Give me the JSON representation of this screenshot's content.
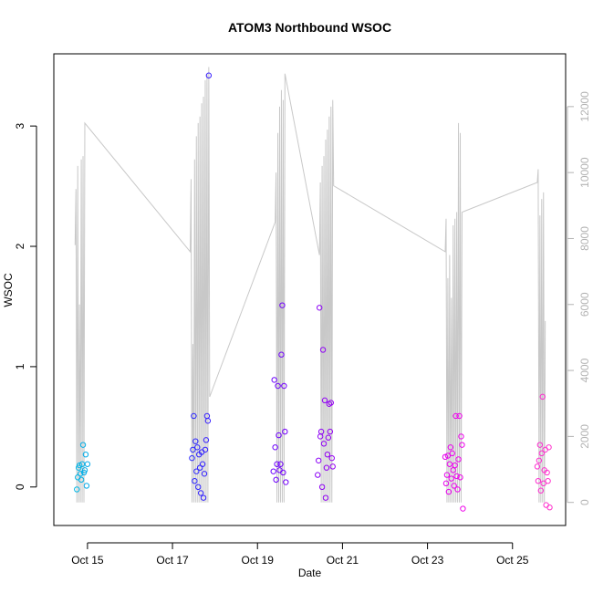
{
  "chart_data": {
    "type": "scatter",
    "title": "ATOM3 Northbound WSOC",
    "xlabel": "Date",
    "ylabel": "WSOC",
    "xlim": [
      "2016-10-14 05:00",
      "2016-10-26 06:00"
    ],
    "ylim": [
      -0.32,
      3.6
    ],
    "y2lim": [
      -700,
      13600
    ],
    "xticks": [
      {
        "date": "2016-10-15",
        "label": "Oct 15"
      },
      {
        "date": "2016-10-17",
        "label": "Oct 17"
      },
      {
        "date": "2016-10-19",
        "label": "Oct 19"
      },
      {
        "date": "2016-10-21",
        "label": "Oct 21"
      },
      {
        "date": "2016-10-23",
        "label": "Oct 23"
      },
      {
        "date": "2016-10-25",
        "label": "Oct 25"
      }
    ],
    "yticks": [
      0,
      1,
      2,
      3
    ],
    "y2ticks": [
      0,
      2000,
      4000,
      6000,
      8000,
      10000,
      12000
    ],
    "grid": false,
    "legend": "none",
    "point_color_scale": [
      "#00b8e6",
      "#1a33ff",
      "#6600ff",
      "#aa00ee",
      "#ee00ee",
      "#ff33cc"
    ],
    "line_color": "#c8c8c8",
    "series": [
      {
        "axis": "left",
        "values": [
          {
            "x": "2016-10-14 18:00",
            "y": -0.02
          },
          {
            "x": "2016-10-14 18:30",
            "y": 0.08
          },
          {
            "x": "2016-10-14 19:00",
            "y": 0.16
          },
          {
            "x": "2016-10-14 19:30",
            "y": 0.18
          },
          {
            "x": "2016-10-14 20:00",
            "y": 0.11
          },
          {
            "x": "2016-10-14 20:30",
            "y": 0.06
          },
          {
            "x": "2016-10-14 21:00",
            "y": 0.19
          },
          {
            "x": "2016-10-14 21:30",
            "y": 0.35
          },
          {
            "x": "2016-10-14 22:00",
            "y": 0.12
          },
          {
            "x": "2016-10-14 22:30",
            "y": 0.14
          },
          {
            "x": "2016-10-14 23:00",
            "y": 0.27
          },
          {
            "x": "2016-10-14 23:30",
            "y": 0.01
          },
          {
            "x": "2016-10-15 00:00",
            "y": 0.19
          },
          {
            "x": "2016-10-17 11:00",
            "y": 0.24
          },
          {
            "x": "2016-10-17 11:30",
            "y": 0.31
          },
          {
            "x": "2016-10-17 12:00",
            "y": 0.59
          },
          {
            "x": "2016-10-17 12:30",
            "y": 0.05
          },
          {
            "x": "2016-10-17 13:00",
            "y": 0.38
          },
          {
            "x": "2016-10-17 13:30",
            "y": 0.13
          },
          {
            "x": "2016-10-17 14:00",
            "y": 0.33
          },
          {
            "x": "2016-10-17 14:30",
            "y": 0.0
          },
          {
            "x": "2016-10-17 15:00",
            "y": 0.27
          },
          {
            "x": "2016-10-17 15:30",
            "y": 0.16
          },
          {
            "x": "2016-10-17 16:00",
            "y": -0.05
          },
          {
            "x": "2016-10-17 16:30",
            "y": 0.29
          },
          {
            "x": "2016-10-17 17:00",
            "y": 0.19
          },
          {
            "x": "2016-10-17 17:30",
            "y": -0.09
          },
          {
            "x": "2016-10-17 18:00",
            "y": 0.11
          },
          {
            "x": "2016-10-17 18:30",
            "y": 0.31
          },
          {
            "x": "2016-10-17 19:00",
            "y": 0.39
          },
          {
            "x": "2016-10-17 19:30",
            "y": 0.59
          },
          {
            "x": "2016-10-17 20:00",
            "y": 0.55
          },
          {
            "x": "2016-10-17 20:30",
            "y": 3.42
          },
          {
            "x": "2016-10-19 09:00",
            "y": 0.13
          },
          {
            "x": "2016-10-19 09:30",
            "y": 0.89
          },
          {
            "x": "2016-10-19 10:00",
            "y": 0.33
          },
          {
            "x": "2016-10-19 10:30",
            "y": 0.06
          },
          {
            "x": "2016-10-19 11:00",
            "y": 0.19
          },
          {
            "x": "2016-10-19 11:30",
            "y": 0.84
          },
          {
            "x": "2016-10-19 12:00",
            "y": 0.43
          },
          {
            "x": "2016-10-19 12:30",
            "y": 0.14
          },
          {
            "x": "2016-10-19 13:00",
            "y": 0.19
          },
          {
            "x": "2016-10-19 13:30",
            "y": 1.1
          },
          {
            "x": "2016-10-19 14:00",
            "y": 1.51
          },
          {
            "x": "2016-10-19 14:30",
            "y": 0.12
          },
          {
            "x": "2016-10-19 15:00",
            "y": 0.84
          },
          {
            "x": "2016-10-19 15:30",
            "y": 0.46
          },
          {
            "x": "2016-10-19 16:00",
            "y": 0.04
          },
          {
            "x": "2016-10-20 10:00",
            "y": 0.1
          },
          {
            "x": "2016-10-20 10:30",
            "y": 0.22
          },
          {
            "x": "2016-10-20 11:00",
            "y": 1.49
          },
          {
            "x": "2016-10-20 11:30",
            "y": 0.42
          },
          {
            "x": "2016-10-20 12:00",
            "y": 0.46
          },
          {
            "x": "2016-10-20 12:30",
            "y": 0.0
          },
          {
            "x": "2016-10-20 13:00",
            "y": 1.14
          },
          {
            "x": "2016-10-20 13:30",
            "y": 0.36
          },
          {
            "x": "2016-10-20 14:00",
            "y": 0.72
          },
          {
            "x": "2016-10-20 14:30",
            "y": -0.09
          },
          {
            "x": "2016-10-20 15:00",
            "y": 0.16
          },
          {
            "x": "2016-10-20 15:30",
            "y": 0.27
          },
          {
            "x": "2016-10-20 16:00",
            "y": 0.41
          },
          {
            "x": "2016-10-20 16:30",
            "y": 0.69
          },
          {
            "x": "2016-10-20 17:00",
            "y": 0.46
          },
          {
            "x": "2016-10-20 17:30",
            "y": 0.7
          },
          {
            "x": "2016-10-20 18:00",
            "y": 0.24
          },
          {
            "x": "2016-10-20 18:30",
            "y": 0.17
          },
          {
            "x": "2016-10-23 10:00",
            "y": 0.25
          },
          {
            "x": "2016-10-23 10:30",
            "y": 0.03
          },
          {
            "x": "2016-10-23 11:00",
            "y": 0.1
          },
          {
            "x": "2016-10-23 11:30",
            "y": 0.26
          },
          {
            "x": "2016-10-23 12:00",
            "y": -0.04
          },
          {
            "x": "2016-10-23 12:30",
            "y": 0.19
          },
          {
            "x": "2016-10-23 13:00",
            "y": 0.33
          },
          {
            "x": "2016-10-23 13:30",
            "y": 0.07
          },
          {
            "x": "2016-10-23 14:00",
            "y": 0.28
          },
          {
            "x": "2016-10-23 14:30",
            "y": 0.14
          },
          {
            "x": "2016-10-23 15:00",
            "y": 0.01
          },
          {
            "x": "2016-10-23 15:30",
            "y": 0.18
          },
          {
            "x": "2016-10-23 16:00",
            "y": 0.59
          },
          {
            "x": "2016-10-23 16:30",
            "y": 0.09
          },
          {
            "x": "2016-10-23 17:00",
            "y": -0.02
          },
          {
            "x": "2016-10-23 17:30",
            "y": 0.23
          },
          {
            "x": "2016-10-23 18:00",
            "y": 0.59
          },
          {
            "x": "2016-10-23 18:30",
            "y": 0.08
          },
          {
            "x": "2016-10-23 19:00",
            "y": 0.42
          },
          {
            "x": "2016-10-23 19:30",
            "y": 0.35
          },
          {
            "x": "2016-10-23 20:00",
            "y": -0.18
          },
          {
            "x": "2016-10-25 14:00",
            "y": 0.17
          },
          {
            "x": "2016-10-25 14:30",
            "y": 0.05
          },
          {
            "x": "2016-10-25 15:00",
            "y": 0.22
          },
          {
            "x": "2016-10-25 15:30",
            "y": 0.35
          },
          {
            "x": "2016-10-25 16:00",
            "y": -0.03
          },
          {
            "x": "2016-10-25 16:30",
            "y": 0.28
          },
          {
            "x": "2016-10-25 17:00",
            "y": 0.75
          },
          {
            "x": "2016-10-25 17:30",
            "y": 0.03
          },
          {
            "x": "2016-10-25 18:00",
            "y": 0.14
          },
          {
            "x": "2016-10-25 18:30",
            "y": 0.31
          },
          {
            "x": "2016-10-25 19:00",
            "y": -0.15
          },
          {
            "x": "2016-10-25 19:30",
            "y": 0.12
          },
          {
            "x": "2016-10-25 20:00",
            "y": 0.05
          },
          {
            "x": "2016-10-25 20:30",
            "y": 0.33
          },
          {
            "x": "2016-10-25 21:00",
            "y": -0.17
          }
        ]
      },
      {
        "axis": "right",
        "type": "line",
        "values": [
          {
            "x": "2016-10-14 17:00",
            "y": 7800
          },
          {
            "x": "2016-10-14 17:30",
            "y": 9500
          },
          {
            "x": "2016-10-14 18:00",
            "y": 0
          },
          {
            "x": "2016-10-14 18:30",
            "y": 10200
          },
          {
            "x": "2016-10-14 19:00",
            "y": 0
          },
          {
            "x": "2016-10-14 19:30",
            "y": 6000
          },
          {
            "x": "2016-10-14 20:00",
            "y": 0
          },
          {
            "x": "2016-10-14 20:30",
            "y": 10400
          },
          {
            "x": "2016-10-14 21:00",
            "y": 0
          },
          {
            "x": "2016-10-14 21:30",
            "y": 10500
          },
          {
            "x": "2016-10-14 22:00",
            "y": 0
          },
          {
            "x": "2016-10-14 22:30",
            "y": 11500
          },
          {
            "x": "2016-10-17 10:00",
            "y": 7600
          },
          {
            "x": "2016-10-17 10:30",
            "y": 9800
          },
          {
            "x": "2016-10-17 11:00",
            "y": 0
          },
          {
            "x": "2016-10-17 11:30",
            "y": 4800
          },
          {
            "x": "2016-10-17 12:00",
            "y": 0
          },
          {
            "x": "2016-10-17 12:30",
            "y": 10400
          },
          {
            "x": "2016-10-17 13:00",
            "y": 0
          },
          {
            "x": "2016-10-17 13:30",
            "y": 11100
          },
          {
            "x": "2016-10-17 14:00",
            "y": 0
          },
          {
            "x": "2016-10-17 14:30",
            "y": 11500
          },
          {
            "x": "2016-10-17 15:00",
            "y": 0
          },
          {
            "x": "2016-10-17 15:30",
            "y": 11700
          },
          {
            "x": "2016-10-17 16:00",
            "y": 0
          },
          {
            "x": "2016-10-17 16:30",
            "y": 12100
          },
          {
            "x": "2016-10-17 17:00",
            "y": 0
          },
          {
            "x": "2016-10-17 17:30",
            "y": 12300
          },
          {
            "x": "2016-10-17 18:00",
            "y": 0
          },
          {
            "x": "2016-10-17 18:30",
            "y": 12800
          },
          {
            "x": "2016-10-17 19:00",
            "y": 0
          },
          {
            "x": "2016-10-17 19:30",
            "y": 13000
          },
          {
            "x": "2016-10-17 20:00",
            "y": 0
          },
          {
            "x": "2016-10-17 20:30",
            "y": 13200
          },
          {
            "x": "2016-10-17 21:00",
            "y": 3200
          },
          {
            "x": "2016-10-19 10:00",
            "y": 8500
          },
          {
            "x": "2016-10-19 10:30",
            "y": 10000
          },
          {
            "x": "2016-10-19 11:00",
            "y": 0
          },
          {
            "x": "2016-10-19 11:30",
            "y": 11200
          },
          {
            "x": "2016-10-19 12:00",
            "y": 0
          },
          {
            "x": "2016-10-19 12:30",
            "y": 12000
          },
          {
            "x": "2016-10-19 13:00",
            "y": 0
          },
          {
            "x": "2016-10-19 13:30",
            "y": 12500
          },
          {
            "x": "2016-10-19 14:00",
            "y": 0
          },
          {
            "x": "2016-10-19 14:30",
            "y": 12200
          },
          {
            "x": "2016-10-19 15:00",
            "y": 0
          },
          {
            "x": "2016-10-19 15:30",
            "y": 13000
          },
          {
            "x": "2016-10-20 11:00",
            "y": 7500
          },
          {
            "x": "2016-10-20 11:30",
            "y": 9700
          },
          {
            "x": "2016-10-20 12:00",
            "y": 0
          },
          {
            "x": "2016-10-20 12:30",
            "y": 10200
          },
          {
            "x": "2016-10-20 13:00",
            "y": 0
          },
          {
            "x": "2016-10-20 13:30",
            "y": 10500
          },
          {
            "x": "2016-10-20 14:00",
            "y": 0
          },
          {
            "x": "2016-10-20 14:30",
            "y": 11000
          },
          {
            "x": "2016-10-20 15:00",
            "y": 0
          },
          {
            "x": "2016-10-20 15:30",
            "y": 11300
          },
          {
            "x": "2016-10-20 16:00",
            "y": 0
          },
          {
            "x": "2016-10-20 16:30",
            "y": 11700
          },
          {
            "x": "2016-10-20 17:00",
            "y": 0
          },
          {
            "x": "2016-10-20 17:30",
            "y": 12000
          },
          {
            "x": "2016-10-20 18:00",
            "y": 0
          },
          {
            "x": "2016-10-20 18:30",
            "y": 12200
          },
          {
            "x": "2016-10-20 19:00",
            "y": 9600
          },
          {
            "x": "2016-10-23 10:00",
            "y": 7600
          },
          {
            "x": "2016-10-23 10:30",
            "y": 8600
          },
          {
            "x": "2016-10-23 11:00",
            "y": 0
          },
          {
            "x": "2016-10-23 11:30",
            "y": 6800
          },
          {
            "x": "2016-10-23 12:00",
            "y": 0
          },
          {
            "x": "2016-10-23 12:30",
            "y": 7500
          },
          {
            "x": "2016-10-23 13:00",
            "y": 0
          },
          {
            "x": "2016-10-23 13:30",
            "y": 6200
          },
          {
            "x": "2016-10-23 14:00",
            "y": 0
          },
          {
            "x": "2016-10-23 14:30",
            "y": 8400
          },
          {
            "x": "2016-10-23 15:00",
            "y": 0
          },
          {
            "x": "2016-10-23 15:30",
            "y": 8600
          },
          {
            "x": "2016-10-23 16:00",
            "y": 0
          },
          {
            "x": "2016-10-23 16:30",
            "y": 8800
          },
          {
            "x": "2016-10-23 17:00",
            "y": 0
          },
          {
            "x": "2016-10-23 17:30",
            "y": 11500
          },
          {
            "x": "2016-10-23 18:00",
            "y": 0
          },
          {
            "x": "2016-10-23 18:30",
            "y": 11200
          },
          {
            "x": "2016-10-23 19:00",
            "y": 0
          },
          {
            "x": "2016-10-23 19:30",
            "y": 8800
          },
          {
            "x": "2016-10-25 14:00",
            "y": 9700
          },
          {
            "x": "2016-10-25 14:30",
            "y": 10100
          },
          {
            "x": "2016-10-25 15:00",
            "y": 0
          },
          {
            "x": "2016-10-25 15:30",
            "y": 8700
          },
          {
            "x": "2016-10-25 16:00",
            "y": 0
          },
          {
            "x": "2016-10-25 16:30",
            "y": 9200
          },
          {
            "x": "2016-10-25 17:00",
            "y": 0
          },
          {
            "x": "2016-10-25 17:30",
            "y": 9400
          },
          {
            "x": "2016-10-25 18:00",
            "y": 0
          },
          {
            "x": "2016-10-25 18:30",
            "y": 5500
          }
        ]
      }
    ]
  }
}
